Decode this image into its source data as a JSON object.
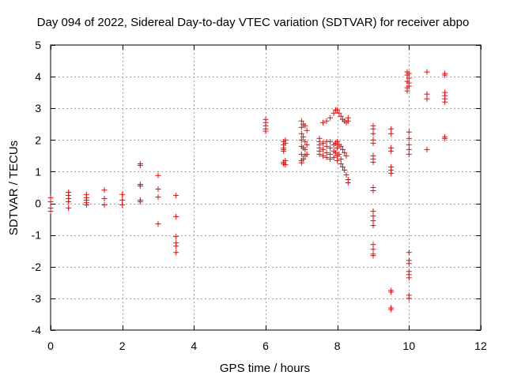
{
  "chart_data": {
    "type": "scatter",
    "title": "Day 094 of 2022, Sidereal Day-to-day VTEC variation (SDTVAR) for receiver abpo",
    "xlabel": "GPS time / hours",
    "ylabel": "SDTVAR / TECUs",
    "xlim": [
      0,
      12
    ],
    "ylim": [
      -4,
      5
    ],
    "xticks": [
      0,
      2,
      4,
      6,
      8,
      10,
      12
    ],
    "xtick_labels": [
      "0",
      "2",
      "4",
      "6",
      "8",
      "10",
      "12"
    ],
    "yticks": [
      -4,
      -3,
      -2,
      -1,
      0,
      1,
      2,
      3,
      4,
      5
    ],
    "ytick_labels": [
      "-4",
      "-3",
      "-2",
      "-1",
      "0",
      "1",
      "2",
      "3",
      "4",
      "5"
    ],
    "grid": true,
    "marker": "plus",
    "series": [
      {
        "name": "SDTVAR",
        "color": "#ff0000",
        "points": [
          [
            0.0,
            0.18
          ],
          [
            0.0,
            0.05
          ],
          [
            0.0,
            -0.15
          ],
          [
            0.0,
            -0.25
          ],
          [
            0.5,
            0.35
          ],
          [
            0.5,
            0.25
          ],
          [
            0.5,
            0.15
          ],
          [
            0.5,
            0.05
          ],
          [
            0.5,
            -0.15
          ],
          [
            1.0,
            0.28
          ],
          [
            1.0,
            0.18
          ],
          [
            1.0,
            0.1
          ],
          [
            1.0,
            0.02
          ],
          [
            1.0,
            -0.05
          ],
          [
            1.5,
            0.42
          ],
          [
            1.5,
            0.15
          ],
          [
            1.5,
            -0.05
          ],
          [
            2.0,
            0.28
          ],
          [
            2.0,
            0.1
          ],
          [
            2.0,
            -0.05
          ],
          [
            2.5,
            1.25
          ],
          [
            2.5,
            1.2
          ],
          [
            2.5,
            0.6
          ],
          [
            2.5,
            0.55
          ],
          [
            2.5,
            0.1
          ],
          [
            2.5,
            0.05
          ],
          [
            3.0,
            0.88
          ],
          [
            3.0,
            0.45
          ],
          [
            3.0,
            0.2
          ],
          [
            3.0,
            -0.65
          ],
          [
            3.5,
            0.25
          ],
          [
            3.5,
            -0.42
          ],
          [
            3.5,
            -1.05
          ],
          [
            3.5,
            -1.25
          ],
          [
            3.5,
            -1.35
          ],
          [
            3.5,
            -1.55
          ],
          [
            6.0,
            2.65
          ],
          [
            6.0,
            2.55
          ],
          [
            6.0,
            2.45
          ],
          [
            6.0,
            2.35
          ],
          [
            6.0,
            2.28
          ],
          [
            6.5,
            1.95
          ],
          [
            6.5,
            1.85
          ],
          [
            6.5,
            1.75
          ],
          [
            6.5,
            1.7
          ],
          [
            6.5,
            1.65
          ],
          [
            6.5,
            1.3
          ],
          [
            6.5,
            1.25
          ],
          [
            6.55,
            2.0
          ],
          [
            6.55,
            1.9
          ],
          [
            6.55,
            1.35
          ],
          [
            6.55,
            1.22
          ],
          [
            7.0,
            2.6
          ],
          [
            7.0,
            2.4
          ],
          [
            7.0,
            2.2
          ],
          [
            7.0,
            2.0
          ],
          [
            7.0,
            1.8
          ],
          [
            7.0,
            1.55
          ],
          [
            7.0,
            1.35
          ],
          [
            7.0,
            1.28
          ],
          [
            7.05,
            2.5
          ],
          [
            7.05,
            2.1
          ],
          [
            7.05,
            1.75
          ],
          [
            7.05,
            1.4
          ],
          [
            7.1,
            2.45
          ],
          [
            7.1,
            1.95
          ],
          [
            7.1,
            1.7
          ],
          [
            7.1,
            1.5
          ],
          [
            7.15,
            2.3
          ],
          [
            7.15,
            1.85
          ],
          [
            7.15,
            1.55
          ],
          [
            7.5,
            2.05
          ],
          [
            7.5,
            1.95
          ],
          [
            7.5,
            1.85
          ],
          [
            7.5,
            1.75
          ],
          [
            7.5,
            1.65
          ],
          [
            7.5,
            1.55
          ],
          [
            7.6,
            2.55
          ],
          [
            7.6,
            1.9
          ],
          [
            7.6,
            1.7
          ],
          [
            7.6,
            1.5
          ],
          [
            7.7,
            2.6
          ],
          [
            7.7,
            1.95
          ],
          [
            7.7,
            1.8
          ],
          [
            7.7,
            1.6
          ],
          [
            7.7,
            1.45
          ],
          [
            7.8,
            2.7
          ],
          [
            7.8,
            1.95
          ],
          [
            7.8,
            1.75
          ],
          [
            7.8,
            1.55
          ],
          [
            7.8,
            1.4
          ],
          [
            7.9,
            2.85
          ],
          [
            7.9,
            1.85
          ],
          [
            7.9,
            1.65
          ],
          [
            7.9,
            1.45
          ],
          [
            7.95,
            2.95
          ],
          [
            7.95,
            1.9
          ],
          [
            7.95,
            1.6
          ],
          [
            8.0,
            2.95
          ],
          [
            8.0,
            1.95
          ],
          [
            8.0,
            1.75
          ],
          [
            8.0,
            1.5
          ],
          [
            8.0,
            1.35
          ],
          [
            8.05,
            2.85
          ],
          [
            8.05,
            1.85
          ],
          [
            8.05,
            1.55
          ],
          [
            8.1,
            2.75
          ],
          [
            8.1,
            1.8
          ],
          [
            8.1,
            1.4
          ],
          [
            8.1,
            1.25
          ],
          [
            8.15,
            2.65
          ],
          [
            8.15,
            1.7
          ],
          [
            8.15,
            1.15
          ],
          [
            8.2,
            2.6
          ],
          [
            8.2,
            1.6
          ],
          [
            8.2,
            1.05
          ],
          [
            8.25,
            2.55
          ],
          [
            8.25,
            1.5
          ],
          [
            8.25,
            0.9
          ],
          [
            8.3,
            2.7
          ],
          [
            8.3,
            2.6
          ],
          [
            8.3,
            0.75
          ],
          [
            8.3,
            0.65
          ],
          [
            9.0,
            2.45
          ],
          [
            9.0,
            2.35
          ],
          [
            9.0,
            2.2
          ],
          [
            9.0,
            2.0
          ],
          [
            9.0,
            1.9
          ],
          [
            9.0,
            1.5
          ],
          [
            9.0,
            1.4
          ],
          [
            9.0,
            1.3
          ],
          [
            9.0,
            0.5
          ],
          [
            9.0,
            0.4
          ],
          [
            9.0,
            -0.25
          ],
          [
            9.0,
            -0.4
          ],
          [
            9.0,
            -0.55
          ],
          [
            9.0,
            -0.7
          ],
          [
            9.0,
            -1.3
          ],
          [
            9.0,
            -1.45
          ],
          [
            9.0,
            -1.6
          ],
          [
            9.0,
            -1.65
          ],
          [
            9.5,
            2.35
          ],
          [
            9.5,
            2.2
          ],
          [
            9.5,
            1.75
          ],
          [
            9.5,
            1.65
          ],
          [
            9.5,
            1.15
          ],
          [
            9.5,
            1.05
          ],
          [
            9.5,
            0.95
          ],
          [
            9.5,
            -2.75
          ],
          [
            9.5,
            -2.8
          ],
          [
            9.5,
            -3.3
          ],
          [
            9.5,
            -3.35
          ],
          [
            9.95,
            4.15
          ],
          [
            9.95,
            4.05
          ],
          [
            9.95,
            3.85
          ],
          [
            9.95,
            3.65
          ],
          [
            9.95,
            3.55
          ],
          [
            10.0,
            4.1
          ],
          [
            10.0,
            3.95
          ],
          [
            10.0,
            3.8
          ],
          [
            10.0,
            3.7
          ],
          [
            10.0,
            2.25
          ],
          [
            10.0,
            2.05
          ],
          [
            10.0,
            1.85
          ],
          [
            10.0,
            1.7
          ],
          [
            10.0,
            1.55
          ],
          [
            10.0,
            -1.55
          ],
          [
            10.0,
            -1.8
          ],
          [
            10.0,
            -1.9
          ],
          [
            10.0,
            -2.15
          ],
          [
            10.0,
            -2.25
          ],
          [
            10.0,
            -2.35
          ],
          [
            10.0,
            -2.9
          ],
          [
            10.0,
            -3.0
          ],
          [
            10.5,
            4.15
          ],
          [
            10.5,
            3.45
          ],
          [
            10.5,
            3.3
          ],
          [
            10.5,
            1.7
          ],
          [
            11.0,
            4.1
          ],
          [
            11.0,
            4.05
          ],
          [
            11.0,
            3.5
          ],
          [
            11.0,
            3.4
          ],
          [
            11.0,
            3.3
          ],
          [
            11.0,
            3.2
          ],
          [
            11.0,
            2.1
          ],
          [
            11.0,
            2.05
          ]
        ]
      }
    ]
  }
}
